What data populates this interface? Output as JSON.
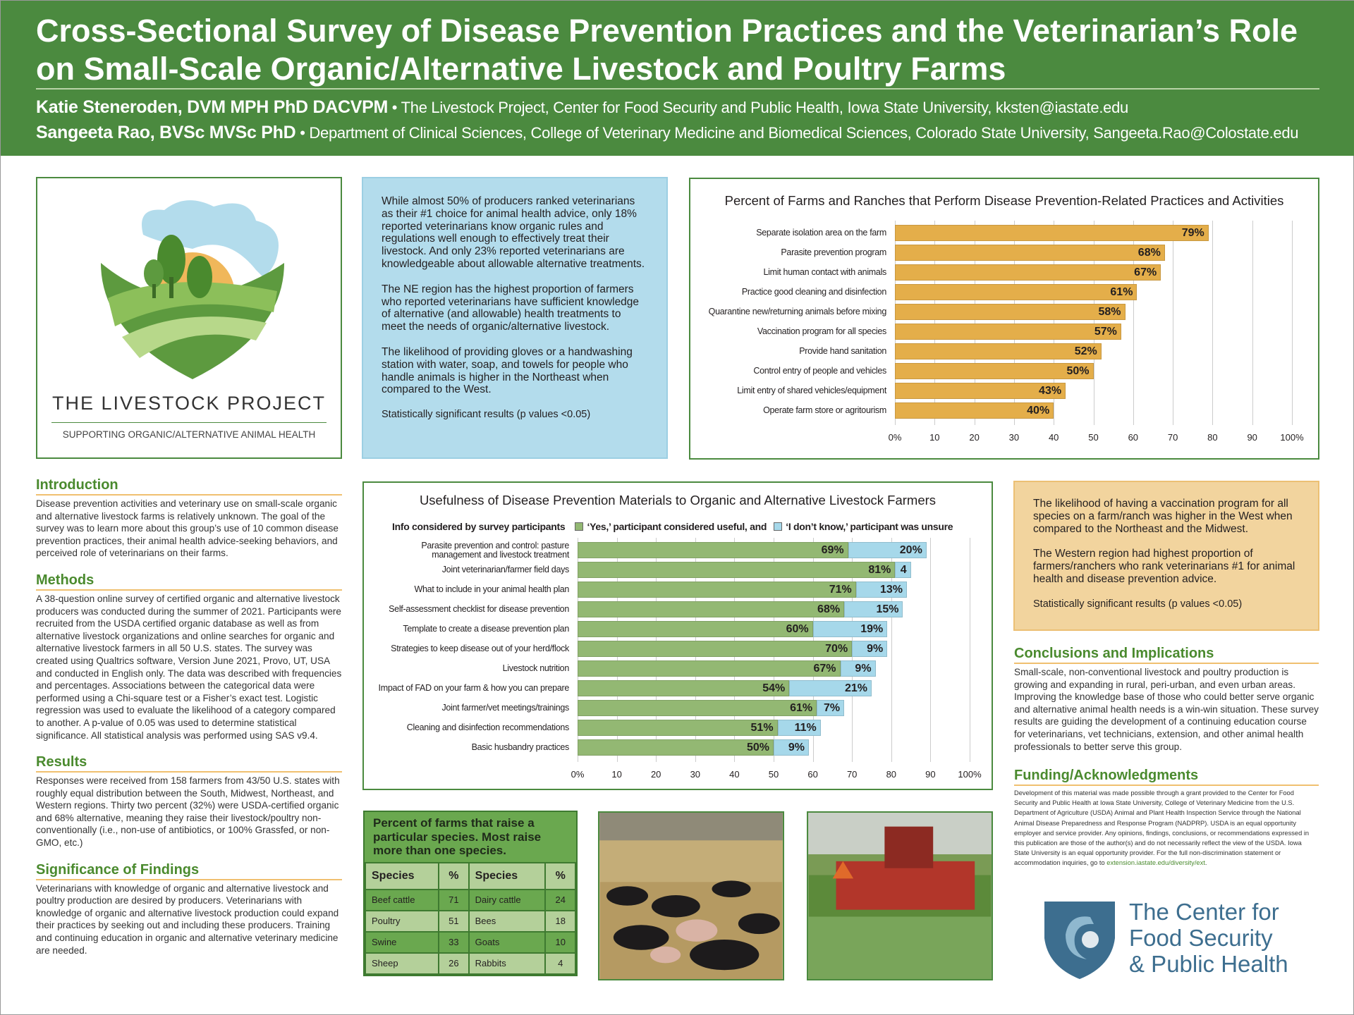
{
  "header": {
    "title": "Cross-Sectional Survey of Disease Prevention Practices and the Veterinarian’s Role on Small-Scale Organic/Alternative Livestock and Poultry Farms",
    "authors": [
      {
        "name": "Katie Steneroden, DVM MPH PhD DACVPM",
        "affiliation": "• The Livestock Project, Center for Food Security and Public Health, Iowa State University, kksten@iastate.edu"
      },
      {
        "name": "Sangeeta Rao, BVSc MVSc PhD",
        "affiliation": "• Department of Clinical Sciences, College of Veterinary Medicine and Biomedical Sciences, Colorado State University, Sangeeta.Rao@Colostate.edu"
      }
    ]
  },
  "logo": {
    "name": "THE LIVESTOCK PROJECT",
    "tagline": "SUPPORTING ORGANIC/ALTERNATIVE ANIMAL HEALTH"
  },
  "blue_callout": [
    "While almost 50% of producers ranked veterinarians as their #1 choice for animal health advice, only 18% reported veterinarians know organic rules and regulations well enough to effectively treat their livestock. And only 23% reported veterinarians are knowledgeable about allowable alternative treatments.",
    "The NE region has the highest proportion of farmers who reported veterinarians have sufficient knowledge of alternative (and allowable) health treatments to meet the needs of organic/alternative livestock.",
    "The likelihood of providing gloves or a handwashing station with water, soap, and towels for people who handle animals is higher in the Northeast when compared to the West.",
    "Statistically significant results (p values <0.05)"
  ],
  "orange_callout": [
    "The likelihood of having a vaccination program for all species on a farm/ranch was higher in the West when compared to the Northeast and the Midwest.",
    "The Western region had highest proportion of farmers/ranchers who rank veterinarians #1 for animal health and disease prevention advice.",
    "Statistically significant results (p values <0.05)"
  ],
  "sections": {
    "introduction": {
      "heading": "Introduction",
      "text": "Disease prevention activities and veterinary use on small-scale organic and alternative livestock farms is relatively unknown. The goal of the survey was to learn more about this group’s use of 10 common disease prevention practices, their animal health advice-seeking behaviors, and perceived role of veterinarians on their farms."
    },
    "methods": {
      "heading": "Methods",
      "text": "A 38-question online survey of certified organic and alternative livestock producers was conducted during the summer of 2021. Participants were recruited from the USDA certified organic database as well as from alternative livestock organizations and online searches for organic and alternative livestock farmers in all 50 U.S. states. The survey was created using Qualtrics software, Version June 2021, Provo, UT, USA and conducted in English only. The data was described with frequencies and percentages. Associations between the categorical data were performed using a Chi-square test or a Fisher’s exact test. Logistic regression was used to evaluate the likelihood of a category compared to another. A p-value of 0.05 was used to determine statistical significance. All statistical analysis was performed using SAS v9.4."
    },
    "results": {
      "heading": "Results",
      "text": "Responses were received from 158 farmers from 43/50 U.S. states with roughly equal distribution between the South, Midwest, Northeast, and Western regions. Thirty two percent (32%) were USDA-certified organic and 68% alternative, meaning they raise their livestock/poultry non-conventionally (i.e., non-use of antibiotics, or 100% Grassfed, or non-GMO, etc.)"
    },
    "significance": {
      "heading": "Significance of Findings",
      "text": "Veterinarians with knowledge of organic and alternative livestock and poultry production are desired by producers. Veterinarians with knowledge of organic and alternative livestock production could expand their practices by seeking out and including these producers. Training and continuing education in organic and alternative veterinary medicine are needed."
    },
    "conclusions": {
      "heading": "Conclusions and Implications",
      "text": "Small-scale, non-conventional livestock and poultry production is growing and expanding in rural, peri-urban, and even urban areas. Improving the knowledge base of those who could better serve organic and alternative animal health needs is a win-win situation. These survey results are guiding the development of a continuing education course for veterinarians, vet technicians, extension, and other animal health professionals to better serve this group."
    },
    "funding": {
      "heading": "Funding/Acknowledgments",
      "text": "Development of this material was made possible through a grant provided to the Center for Food Security and Public Health at Iowa State University, College of Veterinary Medicine from the U.S. Department of Agriculture (USDA) Animal and Plant Health Inspection Service through the National Animal Disease Preparedness and Response Program (NADPRP). USDA is an equal opportunity employer and service provider. Any opinions, findings, conclusions, or recommendations expressed in this publication are those of the author(s) and do not necessarily reflect the view of the USDA. Iowa State University is an equal opportunity provider. For the full non-discrimination statement or accommodation inquiries, go to",
      "link": "extension.iastate.edu/diversity/ext",
      "link_end": "."
    }
  },
  "species_table": {
    "title": "Percent of farms that raise a particular species. Most raise more than one species.",
    "headers": [
      "Species",
      "%",
      "Species",
      "%"
    ],
    "rows": [
      [
        "Beef cattle",
        "71",
        "Dairy cattle",
        "24"
      ],
      [
        "Poultry",
        "51",
        "Bees",
        "18"
      ],
      [
        "Swine",
        "33",
        "Goats",
        "10"
      ],
      [
        "Sheep",
        "26",
        "Rabbits",
        "4"
      ]
    ]
  },
  "cfsph_logo": {
    "line1": "The Center for",
    "line2": "Food Security",
    "line3": "& Public Health"
  },
  "chart_data": [
    {
      "type": "bar",
      "orientation": "horizontal",
      "title": "Percent of Farms and Ranches that Perform Disease Prevention-Related Practices and Activities",
      "categories": [
        "Separate isolation area on the farm",
        "Parasite prevention program",
        "Limit human contact with animals",
        "Practice good cleaning and disinfection",
        "Quarantine new/returning animals before mixing",
        "Vaccination program for all species",
        "Provide hand sanitation",
        "Control entry of people and vehicles",
        "Limit entry of shared vehicles/equipment",
        "Operate farm store or agritourism"
      ],
      "values": [
        79,
        68,
        67,
        61,
        58,
        57,
        52,
        50,
        43,
        40
      ],
      "data_labels": [
        "79%",
        "68%",
        "67%",
        "61%",
        "58%",
        "57%",
        "52%",
        "50%",
        "43%",
        "40%"
      ],
      "xlim": [
        0,
        100
      ],
      "tick_labels": [
        "0%",
        "10",
        "20",
        "30",
        "40",
        "50",
        "60",
        "70",
        "80",
        "90",
        "100%"
      ],
      "grid": true,
      "color": "#e4ae4a"
    },
    {
      "type": "bar",
      "orientation": "horizontal",
      "stacked": true,
      "title": "Usefulness of Disease Prevention Materials to Organic and Alternative Livestock Farmers",
      "legend_title": "Info considered by survey participants",
      "legend_position": "top",
      "categories": [
        "Parasite prevention and control: pasture|management and livestock treatment",
        "Joint veterinarian/farmer field days",
        "What to include in your animal health plan",
        "Self-assessment checklist for disease prevention",
        "Template to create a disease prevention plan",
        "Strategies to keep disease out of your herd/flock",
        "Livestock nutrition",
        "Impact of FAD on your farm & how you can prepare",
        "Joint farmer/vet meetings/trainings",
        "Cleaning and disinfection recommendations",
        "Basic husbandry practices"
      ],
      "series": [
        {
          "name": "‘Yes,’ participant considered useful, and",
          "color": "#93b873",
          "values": [
            69,
            81,
            71,
            68,
            60,
            70,
            67,
            54,
            61,
            51,
            50
          ],
          "data_labels": [
            "69%",
            "81%",
            "71%",
            "68%",
            "60%",
            "70%",
            "67%",
            "54%",
            "61%",
            "51%",
            "50%"
          ]
        },
        {
          "name": "‘I don’t know,’ participant was unsure",
          "color": "#a6d8ea",
          "values": [
            20,
            4,
            13,
            15,
            19,
            9,
            9,
            21,
            7,
            11,
            9
          ],
          "data_labels": [
            "20%",
            "4",
            "13%",
            "15%",
            "19%",
            "9%",
            "9%",
            "21%",
            "7%",
            "11%",
            "9%"
          ]
        }
      ],
      "xlim": [
        0,
        100
      ],
      "tick_labels": [
        "0%",
        "10",
        "20",
        "30",
        "40",
        "50",
        "60",
        "70",
        "80",
        "90",
        "100%"
      ],
      "grid": true
    }
  ]
}
